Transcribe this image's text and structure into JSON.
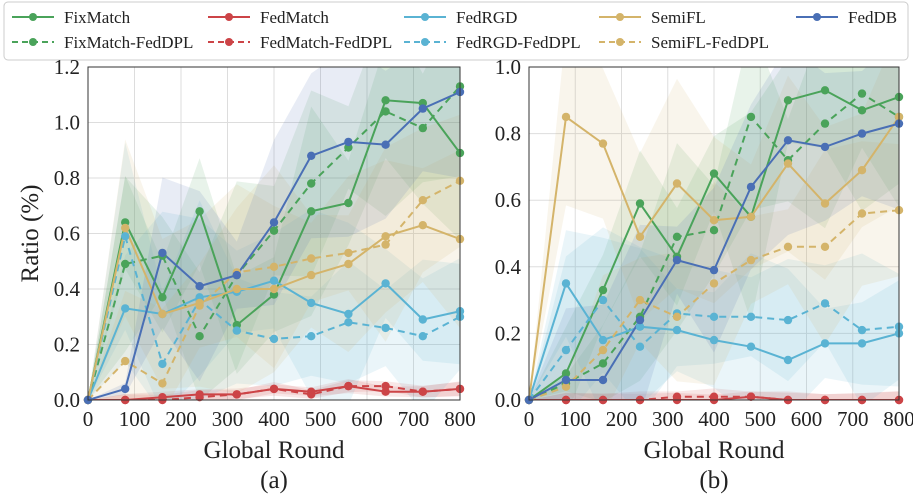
{
  "legend": {
    "placement": "top",
    "entries": [
      {
        "label": "FixMatch",
        "color": "#4aa35a",
        "dashed": false
      },
      {
        "label": "FixMatch-FedDPL",
        "color": "#4aa35a",
        "dashed": true
      },
      {
        "label": "FedMatch",
        "color": "#cc4447",
        "dashed": false
      },
      {
        "label": "FedMatch-FedDPL",
        "color": "#cc4447",
        "dashed": true
      },
      {
        "label": "FedRGD",
        "color": "#5ab3d3",
        "dashed": false
      },
      {
        "label": "FedRGD-FedDPL",
        "color": "#5ab3d3",
        "dashed": true
      },
      {
        "label": "SemiFL",
        "color": "#d4b46a",
        "dashed": false
      },
      {
        "label": "SemiFL-FedDPL",
        "color": "#d4b46a",
        "dashed": true
      },
      {
        "label": "FedDB",
        "color": "#4a6fb5",
        "dashed": false
      }
    ]
  },
  "chart_data": [
    {
      "type": "line",
      "panel_label": "(a)",
      "xlabel": "Global Round",
      "ylabel": "Ratio (%)",
      "xlim": [
        0,
        800
      ],
      "ylim": [
        0,
        1.2
      ],
      "xticks": [
        0,
        100,
        200,
        300,
        400,
        500,
        600,
        700,
        800
      ],
      "yticks": [
        "0.0",
        "0.2",
        "0.4",
        "0.6",
        "0.8",
        "1.0",
        "1.2"
      ],
      "grid": true,
      "x": [
        0,
        80,
        160,
        240,
        320,
        400,
        480,
        560,
        640,
        720,
        800
      ],
      "series": [
        {
          "name": "FixMatch",
          "values": [
            0,
            0.64,
            0.37,
            0.68,
            0.27,
            0.38,
            0.68,
            0.71,
            1.08,
            1.07,
            0.89
          ]
        },
        {
          "name": "FixMatch-FedDPL",
          "values": [
            0,
            0.49,
            0.52,
            0.23,
            0.45,
            0.61,
            0.78,
            0.91,
            1.04,
            0.98,
            1.13
          ]
        },
        {
          "name": "FedMatch",
          "values": [
            0,
            0.0,
            0.01,
            0.02,
            0.02,
            0.04,
            0.03,
            0.05,
            0.03,
            0.03,
            0.04
          ]
        },
        {
          "name": "FedMatch-FedDPL",
          "values": [
            0,
            0.0,
            0.0,
            0.01,
            0.02,
            0.04,
            0.02,
            0.05,
            0.05,
            0.03,
            0.04
          ]
        },
        {
          "name": "FedRGD",
          "values": [
            0,
            0.33,
            0.31,
            0.37,
            0.39,
            0.43,
            0.35,
            0.31,
            0.42,
            0.29,
            0.32
          ]
        },
        {
          "name": "FedRGD-FedDPL",
          "values": [
            0,
            0.59,
            0.13,
            0.36,
            0.25,
            0.22,
            0.23,
            0.28,
            0.26,
            0.23,
            0.3
          ]
        },
        {
          "name": "SemiFL",
          "values": [
            0,
            0.62,
            0.31,
            0.35,
            0.4,
            0.4,
            0.45,
            0.49,
            0.59,
            0.63,
            0.58
          ]
        },
        {
          "name": "SemiFL-FedDPL",
          "values": [
            0,
            0.14,
            0.06,
            0.34,
            0.46,
            0.48,
            0.51,
            0.53,
            0.56,
            0.72,
            0.79
          ]
        },
        {
          "name": "FedDB",
          "values": [
            0,
            0.04,
            0.53,
            0.41,
            0.45,
            0.64,
            0.88,
            0.93,
            0.92,
            1.05,
            1.11
          ]
        }
      ]
    },
    {
      "type": "line",
      "panel_label": "(b)",
      "xlabel": "Global Round",
      "ylabel": "",
      "xlim": [
        0,
        800
      ],
      "ylim": [
        0,
        1.0
      ],
      "xticks": [
        0,
        100,
        200,
        300,
        400,
        500,
        600,
        700,
        800
      ],
      "yticks": [
        "0.0",
        "0.2",
        "0.4",
        "0.6",
        "0.8",
        "1.0"
      ],
      "grid": true,
      "x": [
        0,
        80,
        160,
        240,
        320,
        400,
        480,
        560,
        640,
        720,
        800
      ],
      "series": [
        {
          "name": "FixMatch",
          "values": [
            0,
            0.08,
            0.33,
            0.59,
            0.43,
            0.68,
            0.55,
            0.9,
            0.93,
            0.87,
            0.91
          ]
        },
        {
          "name": "FixMatch-FedDPL",
          "values": [
            0,
            0.05,
            0.11,
            0.25,
            0.49,
            0.51,
            0.85,
            0.72,
            0.83,
            0.92,
            0.85
          ]
        },
        {
          "name": "FedMatch",
          "values": [
            0,
            0.0,
            0.0,
            0.0,
            0.0,
            0.0,
            0.01,
            0.0,
            0.0,
            0.0,
            0.0
          ]
        },
        {
          "name": "FedMatch-FedDPL",
          "values": [
            0,
            0.0,
            0.0,
            0.0,
            0.01,
            0.01,
            0.01,
            0.0,
            0.0,
            0.0,
            0.0
          ]
        },
        {
          "name": "FedRGD",
          "values": [
            0,
            0.35,
            0.18,
            0.22,
            0.21,
            0.18,
            0.16,
            0.12,
            0.17,
            0.17,
            0.2
          ]
        },
        {
          "name": "FedRGD-FedDPL",
          "values": [
            0,
            0.15,
            0.3,
            0.16,
            0.26,
            0.25,
            0.25,
            0.24,
            0.29,
            0.21,
            0.22
          ]
        },
        {
          "name": "SemiFL",
          "values": [
            0,
            0.85,
            0.77,
            0.49,
            0.65,
            0.54,
            0.55,
            0.71,
            0.59,
            0.69,
            0.85
          ]
        },
        {
          "name": "SemiFL-FedDPL",
          "values": [
            0,
            0.04,
            0.15,
            0.3,
            0.25,
            0.35,
            0.42,
            0.46,
            0.46,
            0.56,
            0.57
          ]
        },
        {
          "name": "FedDB",
          "values": [
            0,
            0.06,
            0.06,
            0.24,
            0.42,
            0.39,
            0.64,
            0.78,
            0.76,
            0.8,
            0.83
          ]
        }
      ]
    }
  ]
}
